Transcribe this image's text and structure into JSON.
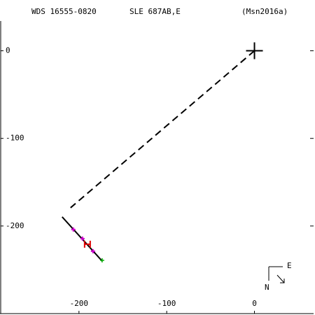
{
  "chart_data": {
    "type": "orbit",
    "title": "WDS 16555-0820",
    "subtitle": "SLE 687AB,E",
    "reference": "(Msn2016a)",
    "compass": {
      "east": "E",
      "north": "N"
    },
    "xlim": [
      -290,
      69
    ],
    "ylim": [
      -300,
      34
    ],
    "xticks": [
      -200,
      -100,
      0
    ],
    "yticks": [
      0,
      -100,
      -200
    ],
    "primary": {
      "x": [
        0
      ],
      "y": [
        0
      ],
      "color": "#000000"
    },
    "dashed": {
      "x": [
        0,
        -209.6
      ],
      "y": [
        0,
        -179.2
      ],
      "color": "#000000"
    },
    "fit": {
      "x": [
        -219.2,
        -173.6
      ],
      "y": [
        -189.6,
        -240
      ],
      "color": "#000000"
    },
    "points": {
      "x": [
        -206.4,
        -196,
        -184
      ],
      "y": [
        -204,
        -214.4,
        -228.8
      ],
      "color": "#cc00cc"
    },
    "red_point": {
      "x": [
        -190.4
      ],
      "y": [
        -220.8
      ],
      "color": "#dd0000"
    },
    "green_point": {
      "x": [
        -173.6
      ],
      "y": [
        -239.2
      ],
      "color": "#00aa00"
    }
  }
}
